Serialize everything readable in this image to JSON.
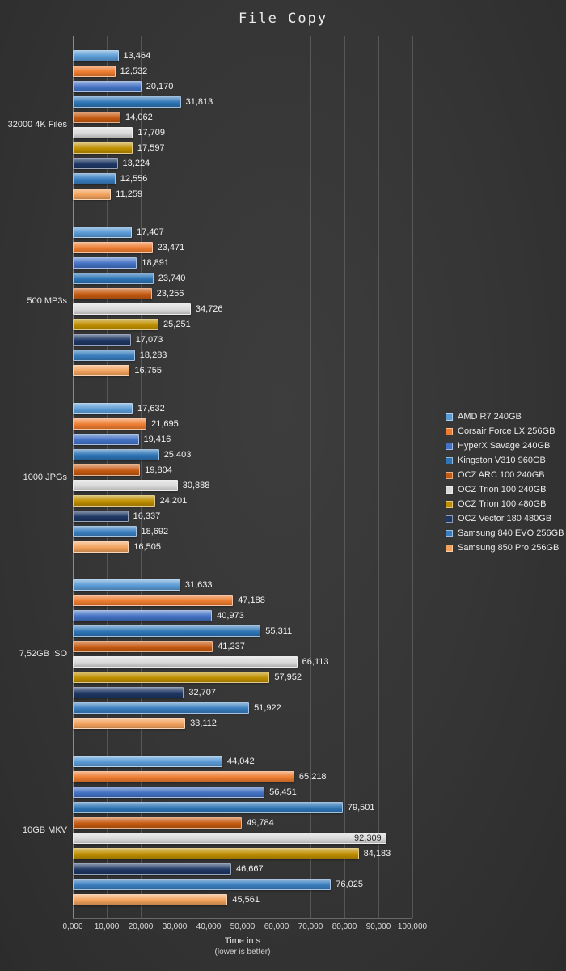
{
  "title": "File Copy",
  "colors": {
    "background": "#333333",
    "text": "#EAEAEA",
    "gridline": "#808080"
  },
  "chart_data": {
    "type": "bar",
    "orientation": "horizontal",
    "title": "File Copy",
    "xlabel": "Time in s",
    "xlabel_note": "(lower is better)",
    "xlim": [
      0,
      100000
    ],
    "x_ticks": [
      "0,000",
      "10,000",
      "20,000",
      "30,000",
      "40,000",
      "50,000",
      "60,000",
      "70,000",
      "80,000",
      "90,000",
      "100,000"
    ],
    "grid": true,
    "legend_position": "right",
    "categories": [
      "32000 4K Files",
      "500 MP3s",
      "1000 JPGs",
      "7,52GB ISO",
      "10GB MKV"
    ],
    "series": [
      {
        "name": "AMD R7 240GB",
        "color": "#5B9BD5",
        "values": [
          13464,
          17407,
          17632,
          31633,
          44042
        ]
      },
      {
        "name": "Corsair Force LX 256GB",
        "color": "#ED7D31",
        "values": [
          12532,
          23471,
          21695,
          47188,
          65218
        ]
      },
      {
        "name": "HyperX Savage 240GB",
        "color": "#4472C4",
        "values": [
          20170,
          18891,
          19416,
          40973,
          56451
        ]
      },
      {
        "name": "Kingston V310 960GB",
        "color": "#2E75B6",
        "values": [
          31813,
          23740,
          25403,
          55311,
          79501
        ]
      },
      {
        "name": "OCZ ARC 100 240GB",
        "color": "#C55A11",
        "values": [
          14062,
          23256,
          19804,
          41237,
          49784
        ]
      },
      {
        "name": "OCZ Trion 100 240GB",
        "color": "#D9D9D9",
        "values": [
          17709,
          34726,
          30888,
          66113,
          92309
        ]
      },
      {
        "name": "OCZ Trion 100 480GB",
        "color": "#BF8F00",
        "values": [
          17597,
          25251,
          24201,
          57952,
          84183
        ]
      },
      {
        "name": "OCZ Vector 180 480GB",
        "color": "#1F3864",
        "values": [
          13224,
          17073,
          16337,
          32707,
          46667
        ]
      },
      {
        "name": "Samsung 840 EVO 256GB",
        "color": "#3A7EBF",
        "values": [
          12556,
          18283,
          18692,
          51922,
          76025
        ]
      },
      {
        "name": "Samsung 850 Pro 256GB",
        "color": "#F2A25C",
        "values": [
          11259,
          16755,
          16505,
          33112,
          45561
        ]
      }
    ]
  }
}
